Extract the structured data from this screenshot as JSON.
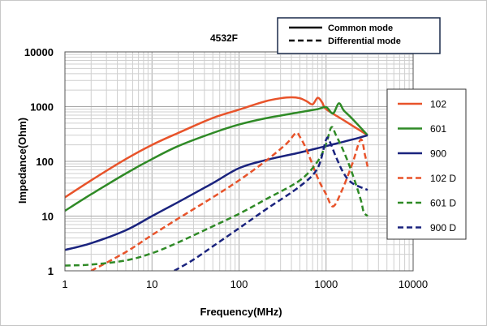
{
  "chart_data": {
    "type": "line",
    "title": "4532F",
    "xlabel": "Frequency(MHz)",
    "ylabel": "Impedance(Ohm)",
    "x_scale": "log",
    "y_scale": "log",
    "xlim": [
      1,
      10000
    ],
    "ylim": [
      1,
      10000
    ],
    "x_ticks": [
      "1",
      "10",
      "100",
      "1000",
      "10000"
    ],
    "y_ticks": [
      "1",
      "10",
      "100",
      "1000",
      "10000"
    ],
    "grid": true,
    "legend_position": "right",
    "style_legend": {
      "common_label": "Common mode",
      "differential_label": "Differential mode",
      "position": "top-right"
    },
    "series": [
      {
        "name": "102",
        "color": "#e8532a",
        "dash": "solid",
        "points": [
          [
            1,
            22
          ],
          [
            2,
            45
          ],
          [
            5,
            110
          ],
          [
            10,
            200
          ],
          [
            20,
            330
          ],
          [
            50,
            620
          ],
          [
            100,
            880
          ],
          [
            200,
            1250
          ],
          [
            300,
            1420
          ],
          [
            400,
            1480
          ],
          [
            500,
            1420
          ],
          [
            600,
            1250
          ],
          [
            700,
            1100
          ],
          [
            800,
            1450
          ],
          [
            900,
            1200
          ],
          [
            1000,
            900
          ],
          [
            1500,
            600
          ],
          [
            2000,
            450
          ],
          [
            3000,
            300
          ]
        ]
      },
      {
        "name": "601",
        "color": "#2f8a26",
        "dash": "solid",
        "points": [
          [
            1,
            12.5
          ],
          [
            2,
            25
          ],
          [
            5,
            60
          ],
          [
            10,
            110
          ],
          [
            20,
            190
          ],
          [
            50,
            330
          ],
          [
            100,
            470
          ],
          [
            200,
            610
          ],
          [
            500,
            790
          ],
          [
            800,
            900
          ],
          [
            1000,
            980
          ],
          [
            1200,
            750
          ],
          [
            1400,
            1150
          ],
          [
            1600,
            850
          ],
          [
            2000,
            600
          ],
          [
            3000,
            300
          ]
        ]
      },
      {
        "name": "900",
        "color": "#1a237e",
        "dash": "solid",
        "points": [
          [
            1,
            2.4
          ],
          [
            2,
            3.2
          ],
          [
            5,
            5.5
          ],
          [
            10,
            10
          ],
          [
            20,
            18
          ],
          [
            50,
            40
          ],
          [
            100,
            75
          ],
          [
            200,
            105
          ],
          [
            500,
            145
          ],
          [
            1000,
            190
          ],
          [
            2000,
            250
          ],
          [
            3000,
            300
          ]
        ]
      },
      {
        "name": "102 D",
        "color": "#e8532a",
        "dash": "dashed",
        "points": [
          [
            2,
            1
          ],
          [
            5,
            2.2
          ],
          [
            10,
            4.5
          ],
          [
            20,
            9
          ],
          [
            50,
            22
          ],
          [
            100,
            45
          ],
          [
            200,
            100
          ],
          [
            350,
            210
          ],
          [
            450,
            330
          ],
          [
            500,
            280
          ],
          [
            600,
            160
          ],
          [
            800,
            50
          ],
          [
            1000,
            25
          ],
          [
            1200,
            15
          ],
          [
            1500,
            28
          ],
          [
            2000,
            90
          ],
          [
            2500,
            250
          ],
          [
            2800,
            130
          ],
          [
            3000,
            80
          ]
        ]
      },
      {
        "name": "601 D",
        "color": "#2f8a26",
        "dash": "dashed",
        "points": [
          [
            1,
            1.25
          ],
          [
            2,
            1.3
          ],
          [
            5,
            1.55
          ],
          [
            10,
            2.1
          ],
          [
            20,
            3.3
          ],
          [
            50,
            6.5
          ],
          [
            100,
            11
          ],
          [
            200,
            20
          ],
          [
            500,
            45
          ],
          [
            800,
            100
          ],
          [
            1000,
            210
          ],
          [
            1150,
            420
          ],
          [
            1300,
            300
          ],
          [
            1600,
            150
          ],
          [
            2000,
            60
          ],
          [
            2500,
            20
          ],
          [
            2700,
            12
          ],
          [
            3000,
            10
          ]
        ]
      },
      {
        "name": "900 D",
        "color": "#1a237e",
        "dash": "dashed",
        "points": [
          [
            18,
            1
          ],
          [
            30,
            1.6
          ],
          [
            50,
            2.8
          ],
          [
            100,
            6
          ],
          [
            200,
            13
          ],
          [
            500,
            35
          ],
          [
            800,
            75
          ],
          [
            1000,
            250
          ],
          [
            1100,
            230
          ],
          [
            1300,
            120
          ],
          [
            1600,
            60
          ],
          [
            2000,
            40
          ],
          [
            3000,
            30
          ]
        ]
      }
    ]
  }
}
